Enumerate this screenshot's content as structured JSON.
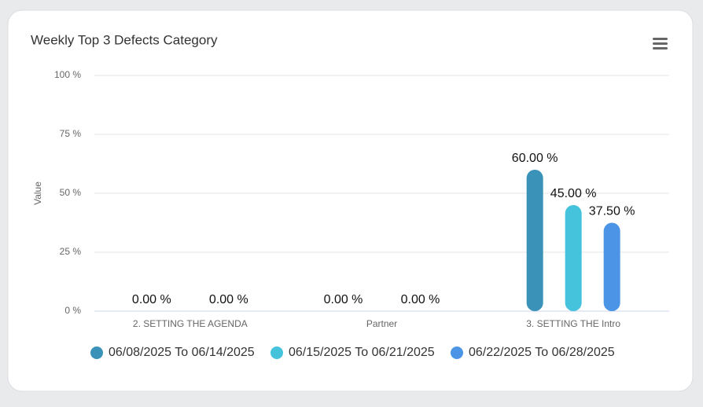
{
  "chart_data": {
    "type": "bar",
    "title": "Weekly Top 3 Defects Category",
    "y_label": "Value",
    "categories": [
      "2. SETTING THE AGENDA",
      "Partner",
      "3. SETTING THE Intro"
    ],
    "series": [
      {
        "name": "06/08/2025 To 06/14/2025",
        "color": "#3a92b8",
        "values": [
          0,
          0,
          60
        ],
        "value_labels": [
          "0.00 %",
          "0.00 %",
          "60.00 %"
        ]
      },
      {
        "name": "06/15/2025 To 06/21/2025",
        "color": "#45c3dc",
        "values": [
          null,
          null,
          45
        ],
        "value_labels": [
          null,
          null,
          "45.00 %"
        ]
      },
      {
        "name": "06/22/2025 To 06/28/2025",
        "color": "#4b94e6",
        "values": [
          0,
          0,
          37.5
        ],
        "value_labels": [
          "0.00 %",
          "0.00 %",
          "37.50 %"
        ]
      }
    ],
    "ylim": [
      0,
      100
    ],
    "yticks": [
      {
        "value": 0,
        "label": "0 %"
      },
      {
        "value": 25,
        "label": "25 %"
      },
      {
        "value": 50,
        "label": "50 %"
      },
      {
        "value": 75,
        "label": "75 %"
      },
      {
        "value": 100,
        "label": "100 %"
      }
    ],
    "grid": true
  }
}
